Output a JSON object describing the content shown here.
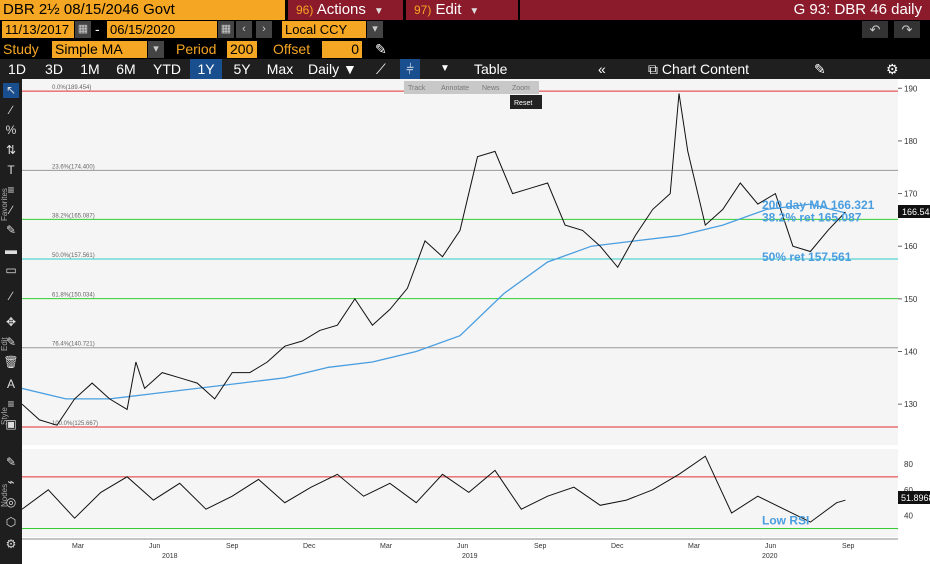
{
  "header": {
    "security": "DBR 2½ 08/15/2046 Govt",
    "actions_num": "96)",
    "actions_label": "Actions",
    "edit_num": "97)",
    "edit_label": "Edit",
    "function_title": "G 93: DBR 46 daily"
  },
  "daterow": {
    "start_date": "11/13/2017",
    "dash": "-",
    "end_date": "06/15/2020",
    "currency": "Local CCY",
    "undo_label": "↶",
    "redo_label": "↷"
  },
  "studyrow": {
    "study_label": "Study",
    "study_value": "Simple MA",
    "period_label": "Period",
    "period_value": "200",
    "offset_label": "Offset",
    "offset_value": "0"
  },
  "rangebar": {
    "ranges": [
      "1D",
      "3D",
      "1M",
      "6M",
      "YTD",
      "1Y",
      "5Y",
      "Max"
    ],
    "selected": "1Y",
    "frequency": "Daily",
    "table_label": "Table",
    "chart_content_label": "Chart Content"
  },
  "sidebar": {
    "favorites_label": "Favorites",
    "edit_label": "Edit",
    "style_label": "Style",
    "nodes_label": "Nodes"
  },
  "mini_toolbar": {
    "track": "Track",
    "annotate": "Annotate",
    "news": "News",
    "zoom": "Zoom",
    "reset": "Reset"
  },
  "chart_data": {
    "type": "line",
    "price_axis_ticks": [
      130,
      140,
      150,
      160,
      170,
      180,
      190
    ],
    "rsi_axis_ticks": [
      40,
      60,
      80
    ],
    "x_tick_labels": [
      "Mar",
      "Jun",
      "Sep",
      "Dec",
      "Mar",
      "Jun",
      "Sep",
      "Dec",
      "Mar",
      "Jun",
      "Sep"
    ],
    "year_labels": [
      "2018",
      "2019",
      "2020"
    ],
    "ylim": [
      123,
      191
    ],
    "fib_levels": [
      {
        "label": "0.0%(189.454)",
        "value": 189.454,
        "color": "#e03030"
      },
      {
        "label": "23.6%(174.400)",
        "value": 174.4,
        "color": "#999999"
      },
      {
        "label": "38.2%(165.087)",
        "value": 165.087,
        "color": "#33cc33"
      },
      {
        "label": "50.0%(157.561)",
        "value": 157.561,
        "color": "#33cccc"
      },
      {
        "label": "61.8%(150.034)",
        "value": 150.034,
        "color": "#33cc33"
      },
      {
        "label": "76.4%(140.721)",
        "value": 140.721,
        "color": "#999999"
      },
      {
        "label": "100.0%(125.667)",
        "value": 125.667,
        "color": "#e03030"
      }
    ],
    "series": [
      {
        "name": "Price",
        "x": [
          0,
          0.02,
          0.04,
          0.06,
          0.08,
          0.1,
          0.12,
          0.13,
          0.14,
          0.16,
          0.18,
          0.2,
          0.22,
          0.24,
          0.26,
          0.28,
          0.3,
          0.32,
          0.34,
          0.36,
          0.38,
          0.4,
          0.42,
          0.44,
          0.46,
          0.48,
          0.5,
          0.52,
          0.54,
          0.56,
          0.58,
          0.6,
          0.62,
          0.64,
          0.66,
          0.68,
          0.7,
          0.72,
          0.74,
          0.75,
          0.76,
          0.78,
          0.8,
          0.82,
          0.84,
          0.86,
          0.88,
          0.9,
          0.92,
          0.94
        ],
        "values": [
          130,
          127,
          126,
          131,
          134,
          131,
          129,
          138,
          133,
          136,
          135,
          134,
          131,
          136,
          136,
          138,
          141,
          142,
          144,
          145,
          150,
          145,
          148,
          152,
          161,
          158,
          163,
          177,
          178,
          170,
          171,
          172,
          164,
          163,
          160,
          156,
          162,
          167,
          170,
          189,
          178,
          164,
          167,
          172,
          168,
          170,
          160,
          159,
          163,
          166.5
        ]
      },
      {
        "name": "200 day MA",
        "x": [
          0,
          0.05,
          0.1,
          0.15,
          0.2,
          0.25,
          0.3,
          0.35,
          0.4,
          0.45,
          0.5,
          0.55,
          0.6,
          0.65,
          0.7,
          0.75,
          0.8,
          0.85,
          0.9,
          0.94
        ],
        "values": [
          133,
          131,
          131,
          132,
          133,
          134,
          135,
          137,
          138,
          140,
          143,
          151,
          157,
          160,
          161,
          162,
          164,
          167,
          168,
          166.321
        ]
      }
    ],
    "rsi": {
      "name": "RSI",
      "x": [
        0,
        0.03,
        0.06,
        0.09,
        0.12,
        0.15,
        0.18,
        0.21,
        0.24,
        0.27,
        0.3,
        0.33,
        0.36,
        0.39,
        0.42,
        0.45,
        0.48,
        0.51,
        0.54,
        0.57,
        0.6,
        0.63,
        0.66,
        0.69,
        0.72,
        0.75,
        0.78,
        0.81,
        0.84,
        0.87,
        0.9,
        0.93,
        0.94
      ],
      "values": [
        45,
        60,
        38,
        58,
        70,
        52,
        65,
        45,
        55,
        68,
        50,
        62,
        72,
        55,
        65,
        50,
        72,
        58,
        75,
        45,
        55,
        62,
        48,
        52,
        60,
        72,
        86,
        42,
        55,
        45,
        35,
        50,
        51.8968
      ],
      "upper": 70,
      "lower": 30,
      "ylim": [
        25,
        90
      ]
    },
    "annotations": [
      {
        "text": "200 day MA 166.321",
        "value": 166.321,
        "color": "#4a9ee0"
      },
      {
        "text": "38.2% ret 165.087",
        "value": 165.087,
        "color": "#4a9ee0"
      },
      {
        "text": "50% ret 157.561",
        "value": 157.561,
        "color": "#4a9ee0"
      },
      {
        "text": "Low RSI",
        "value": 30,
        "color": "#4a9ee0"
      }
    ],
    "last_price_label": "166.545",
    "last_rsi_label": "51.8968"
  },
  "colors": {
    "price_line": "#111111",
    "ma_line": "#4a9ee0",
    "annotation": "#4a9ee0",
    "rsi_line": "#111111",
    "overbought_fill": "#e89aa2"
  }
}
